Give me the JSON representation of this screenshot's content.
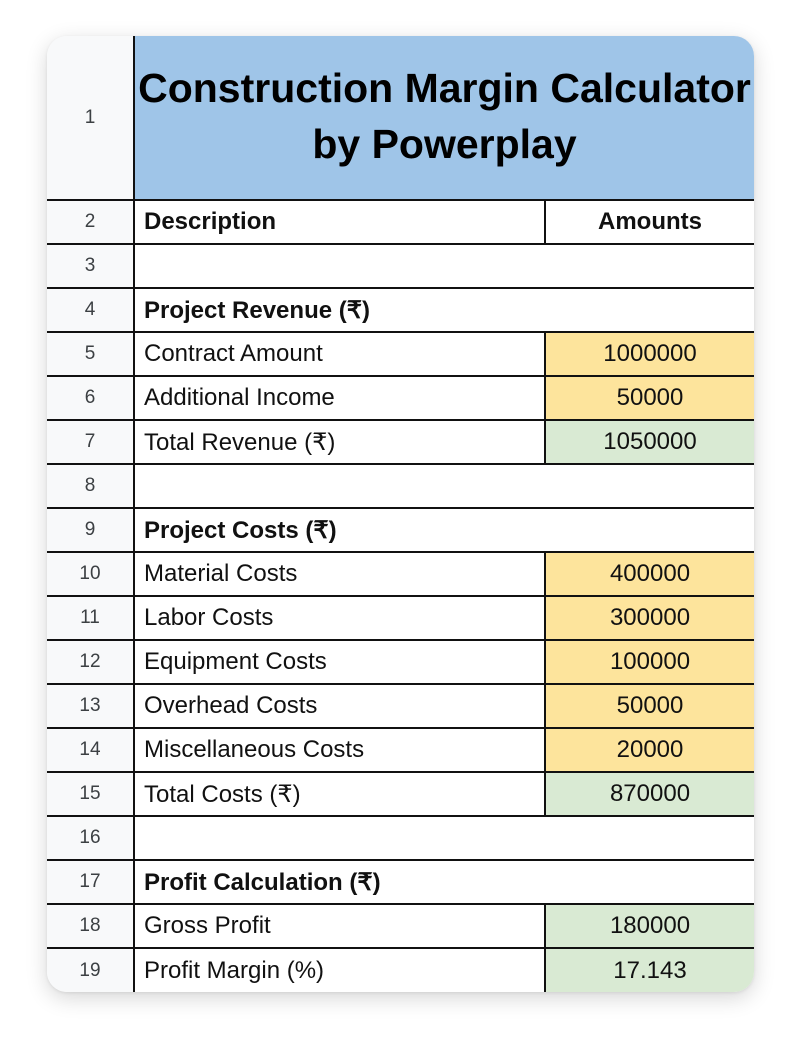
{
  "title": "Construction Margin Calculator by Powerplay",
  "headers": {
    "description": "Description",
    "amounts": "Amounts"
  },
  "rows": [
    {
      "num": "1"
    },
    {
      "num": "2"
    },
    {
      "num": "3"
    },
    {
      "num": "4",
      "label": "Project Revenue (₹)"
    },
    {
      "num": "5",
      "label": "Contract Amount",
      "value": "1000000"
    },
    {
      "num": "6",
      "label": "Additional Income",
      "value": "50000"
    },
    {
      "num": "7",
      "label": "Total Revenue (₹)",
      "value": "1050000"
    },
    {
      "num": "8"
    },
    {
      "num": "9",
      "label": "Project Costs (₹)"
    },
    {
      "num": "10",
      "label": "Material Costs",
      "value": "400000"
    },
    {
      "num": "11",
      "label": "Labor Costs",
      "value": "300000"
    },
    {
      "num": "12",
      "label": "Equipment Costs",
      "value": "100000"
    },
    {
      "num": "13",
      "label": "Overhead Costs",
      "value": "50000"
    },
    {
      "num": "14",
      "label": "Miscellaneous Costs",
      "value": "20000"
    },
    {
      "num": "15",
      "label": "Total Costs (₹)",
      "value": "870000"
    },
    {
      "num": "16"
    },
    {
      "num": "17",
      "label": "Profit Calculation (₹)"
    },
    {
      "num": "18",
      "label": "Gross Profit",
      "value": "180000"
    },
    {
      "num": "19",
      "label": "Profit Margin (%)",
      "value": "17.143"
    }
  ],
  "colors": {
    "title_bg": "#9fc5e8",
    "input_cell": "#fde49c",
    "calculated_cell": "#d9ead3",
    "row_header_bg": "#f8f9fa"
  }
}
